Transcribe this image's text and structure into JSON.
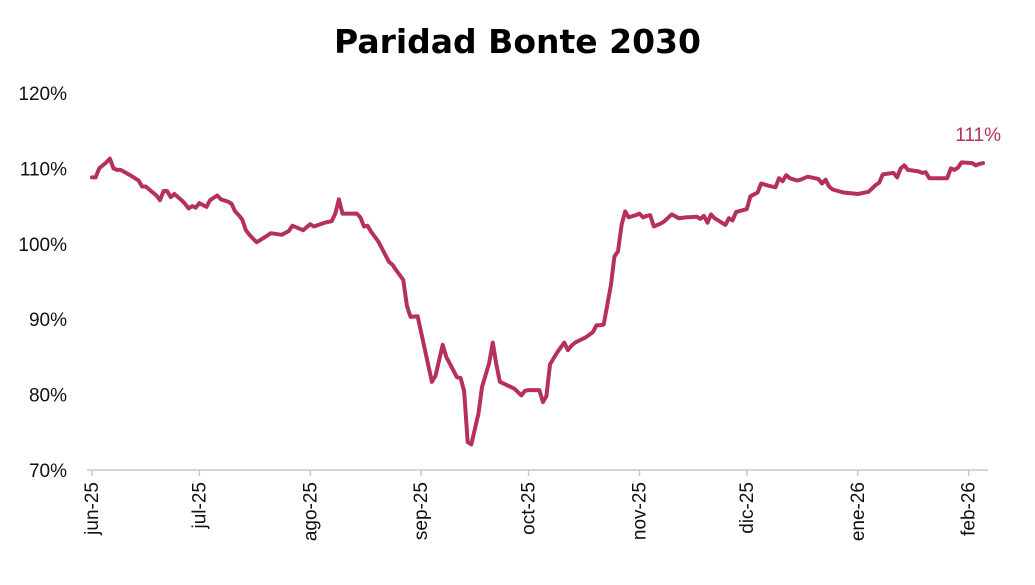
{
  "chart_data": {
    "type": "line",
    "title": "Paridad Bonte 2030",
    "xlabel": "",
    "ylabel": "",
    "ylim": [
      70,
      120
    ],
    "y_ticks": [
      70,
      80,
      90,
      100,
      110,
      120
    ],
    "y_tick_labels": [
      "70%",
      "80%",
      "90%",
      "100%",
      "110%",
      "120%"
    ],
    "x_tick_labels": [
      "jun-25",
      "jul-25",
      "ago-25",
      "sep-25",
      "oct-25",
      "nov-25",
      "dic-25",
      "ene-26",
      "feb-26"
    ],
    "x_tick_dates": [
      "2025-06-01",
      "2025-07-01",
      "2025-08-01",
      "2025-09-01",
      "2025-10-01",
      "2025-11-01",
      "2025-12-01",
      "2026-01-01",
      "2026-02-01"
    ],
    "grid": false,
    "legend": "none",
    "last_value_label": "111%",
    "line_color": "#b5305c",
    "series": [
      {
        "points": [
          [
            "2025-06-01",
            108.8
          ],
          [
            "2025-06-02",
            108.8
          ],
          [
            "2025-06-03",
            110.0
          ],
          [
            "2025-06-05",
            110.8
          ],
          [
            "2025-06-06",
            111.3
          ],
          [
            "2025-06-07",
            110.0
          ],
          [
            "2025-06-08",
            109.8
          ],
          [
            "2025-06-09",
            109.8
          ],
          [
            "2025-06-12",
            109.0
          ],
          [
            "2025-06-14",
            108.4
          ],
          [
            "2025-06-15",
            107.6
          ],
          [
            "2025-06-16",
            107.6
          ],
          [
            "2025-06-19",
            106.4
          ],
          [
            "2025-06-20",
            105.8
          ],
          [
            "2025-06-21",
            107.0
          ],
          [
            "2025-06-22",
            107.0
          ],
          [
            "2025-06-23",
            106.2
          ],
          [
            "2025-06-24",
            106.6
          ],
          [
            "2025-06-26",
            105.8
          ],
          [
            "2025-06-27",
            105.3
          ],
          [
            "2025-06-28",
            104.7
          ],
          [
            "2025-06-29",
            105.0
          ],
          [
            "2025-06-30",
            104.8
          ],
          [
            "2025-07-01",
            105.4
          ],
          [
            "2025-07-03",
            104.9
          ],
          [
            "2025-07-04",
            105.8
          ],
          [
            "2025-07-06",
            106.4
          ],
          [
            "2025-07-07",
            105.9
          ],
          [
            "2025-07-09",
            105.6
          ],
          [
            "2025-07-10",
            105.3
          ],
          [
            "2025-07-11",
            104.3
          ],
          [
            "2025-07-12",
            103.8
          ],
          [
            "2025-07-13",
            103.2
          ],
          [
            "2025-07-14",
            101.8
          ],
          [
            "2025-07-15",
            101.2
          ],
          [
            "2025-07-17",
            100.2
          ],
          [
            "2025-07-19",
            100.8
          ],
          [
            "2025-07-21",
            101.4
          ],
          [
            "2025-07-24",
            101.2
          ],
          [
            "2025-07-26",
            101.7
          ],
          [
            "2025-07-27",
            102.4
          ],
          [
            "2025-07-30",
            101.8
          ],
          [
            "2025-08-01",
            102.6
          ],
          [
            "2025-08-02",
            102.3
          ],
          [
            "2025-08-05",
            102.8
          ],
          [
            "2025-08-07",
            103.0
          ],
          [
            "2025-08-08",
            104.0
          ],
          [
            "2025-08-09",
            105.9
          ],
          [
            "2025-08-10",
            104.0
          ],
          [
            "2025-08-14",
            104.0
          ],
          [
            "2025-08-15",
            103.5
          ],
          [
            "2025-08-16",
            102.3
          ],
          [
            "2025-08-17",
            102.4
          ],
          [
            "2025-08-18",
            101.6
          ],
          [
            "2025-08-20",
            100.3
          ],
          [
            "2025-08-22",
            98.5
          ],
          [
            "2025-08-23",
            97.6
          ],
          [
            "2025-08-24",
            97.2
          ],
          [
            "2025-08-25",
            96.5
          ],
          [
            "2025-08-27",
            95.2
          ],
          [
            "2025-08-28",
            91.8
          ],
          [
            "2025-08-29",
            90.3
          ],
          [
            "2025-08-31",
            90.4
          ],
          [
            "2025-09-04",
            81.7
          ],
          [
            "2025-09-05",
            82.5
          ],
          [
            "2025-09-07",
            86.6
          ],
          [
            "2025-09-08",
            85.0
          ],
          [
            "2025-09-11",
            82.3
          ],
          [
            "2025-09-12",
            82.2
          ],
          [
            "2025-09-13",
            80.5
          ],
          [
            "2025-09-14",
            73.7
          ],
          [
            "2025-09-15",
            73.4
          ],
          [
            "2025-09-17",
            77.5
          ],
          [
            "2025-09-18",
            81.0
          ],
          [
            "2025-09-20",
            84.2
          ],
          [
            "2025-09-21",
            86.9
          ],
          [
            "2025-09-22",
            84.0
          ],
          [
            "2025-09-23",
            81.7
          ],
          [
            "2025-09-27",
            80.8
          ],
          [
            "2025-09-29",
            79.9
          ],
          [
            "2025-09-30",
            80.5
          ],
          [
            "2025-10-01",
            80.6
          ],
          [
            "2025-10-04",
            80.6
          ],
          [
            "2025-10-05",
            79.0
          ],
          [
            "2025-10-06",
            79.8
          ],
          [
            "2025-10-07",
            84.0
          ],
          [
            "2025-10-09",
            85.6
          ],
          [
            "2025-10-11",
            86.9
          ],
          [
            "2025-10-12",
            85.9
          ],
          [
            "2025-10-13",
            86.5
          ],
          [
            "2025-10-14",
            86.9
          ],
          [
            "2025-10-17",
            87.6
          ],
          [
            "2025-10-19",
            88.3
          ],
          [
            "2025-10-20",
            89.2
          ],
          [
            "2025-10-21",
            89.2
          ],
          [
            "2025-10-22",
            89.3
          ],
          [
            "2025-10-24",
            94.5
          ],
          [
            "2025-10-25",
            98.3
          ],
          [
            "2025-10-26",
            99.0
          ],
          [
            "2025-10-27",
            102.5
          ],
          [
            "2025-10-28",
            104.3
          ],
          [
            "2025-10-29",
            103.5
          ],
          [
            "2025-10-31",
            103.8
          ],
          [
            "2025-11-01",
            104.0
          ],
          [
            "2025-11-02",
            103.5
          ],
          [
            "2025-11-03",
            103.7
          ],
          [
            "2025-11-04",
            103.8
          ],
          [
            "2025-11-05",
            102.3
          ],
          [
            "2025-11-07",
            102.7
          ],
          [
            "2025-11-08",
            103.0
          ],
          [
            "2025-11-10",
            103.9
          ],
          [
            "2025-11-12",
            103.4
          ],
          [
            "2025-11-14",
            103.5
          ],
          [
            "2025-11-17",
            103.6
          ],
          [
            "2025-11-18",
            103.3
          ],
          [
            "2025-11-19",
            103.7
          ],
          [
            "2025-11-20",
            102.8
          ],
          [
            "2025-11-21",
            103.9
          ],
          [
            "2025-11-22",
            103.4
          ],
          [
            "2025-11-25",
            102.5
          ],
          [
            "2025-11-26",
            103.4
          ],
          [
            "2025-11-27",
            103.1
          ],
          [
            "2025-11-28",
            104.2
          ],
          [
            "2025-12-01",
            104.6
          ],
          [
            "2025-12-02",
            106.3
          ],
          [
            "2025-12-04",
            106.8
          ],
          [
            "2025-12-05",
            108.0
          ],
          [
            "2025-12-07",
            107.7
          ],
          [
            "2025-12-09",
            107.5
          ],
          [
            "2025-12-10",
            108.7
          ],
          [
            "2025-12-11",
            108.3
          ],
          [
            "2025-12-12",
            109.1
          ],
          [
            "2025-12-13",
            108.7
          ],
          [
            "2025-12-15",
            108.4
          ],
          [
            "2025-12-16",
            108.5
          ],
          [
            "2025-12-18",
            108.9
          ],
          [
            "2025-12-20",
            108.7
          ],
          [
            "2025-12-21",
            108.6
          ],
          [
            "2025-12-22",
            108.0
          ],
          [
            "2025-12-23",
            108.5
          ],
          [
            "2025-12-24",
            107.6
          ],
          [
            "2025-12-25",
            107.2
          ],
          [
            "2025-12-28",
            106.8
          ],
          [
            "2025-12-30",
            106.7
          ],
          [
            "2026-01-01",
            106.6
          ],
          [
            "2026-01-04",
            106.9
          ],
          [
            "2026-01-06",
            107.8
          ],
          [
            "2026-01-07",
            108.1
          ],
          [
            "2026-01-08",
            109.2
          ],
          [
            "2026-01-11",
            109.4
          ],
          [
            "2026-01-12",
            108.8
          ],
          [
            "2026-01-13",
            110.0
          ],
          [
            "2026-01-14",
            110.4
          ],
          [
            "2026-01-15",
            109.8
          ],
          [
            "2026-01-18",
            109.6
          ],
          [
            "2026-01-19",
            109.4
          ],
          [
            "2026-01-20",
            109.5
          ],
          [
            "2026-01-21",
            108.7
          ],
          [
            "2026-01-26",
            108.7
          ],
          [
            "2026-01-27",
            110.0
          ],
          [
            "2026-01-28",
            109.8
          ],
          [
            "2026-01-29",
            110.1
          ],
          [
            "2026-01-30",
            110.8
          ],
          [
            "2026-02-02",
            110.7
          ],
          [
            "2026-02-03",
            110.4
          ],
          [
            "2026-02-04",
            110.6
          ],
          [
            "2026-02-05",
            110.7
          ]
        ]
      }
    ]
  }
}
